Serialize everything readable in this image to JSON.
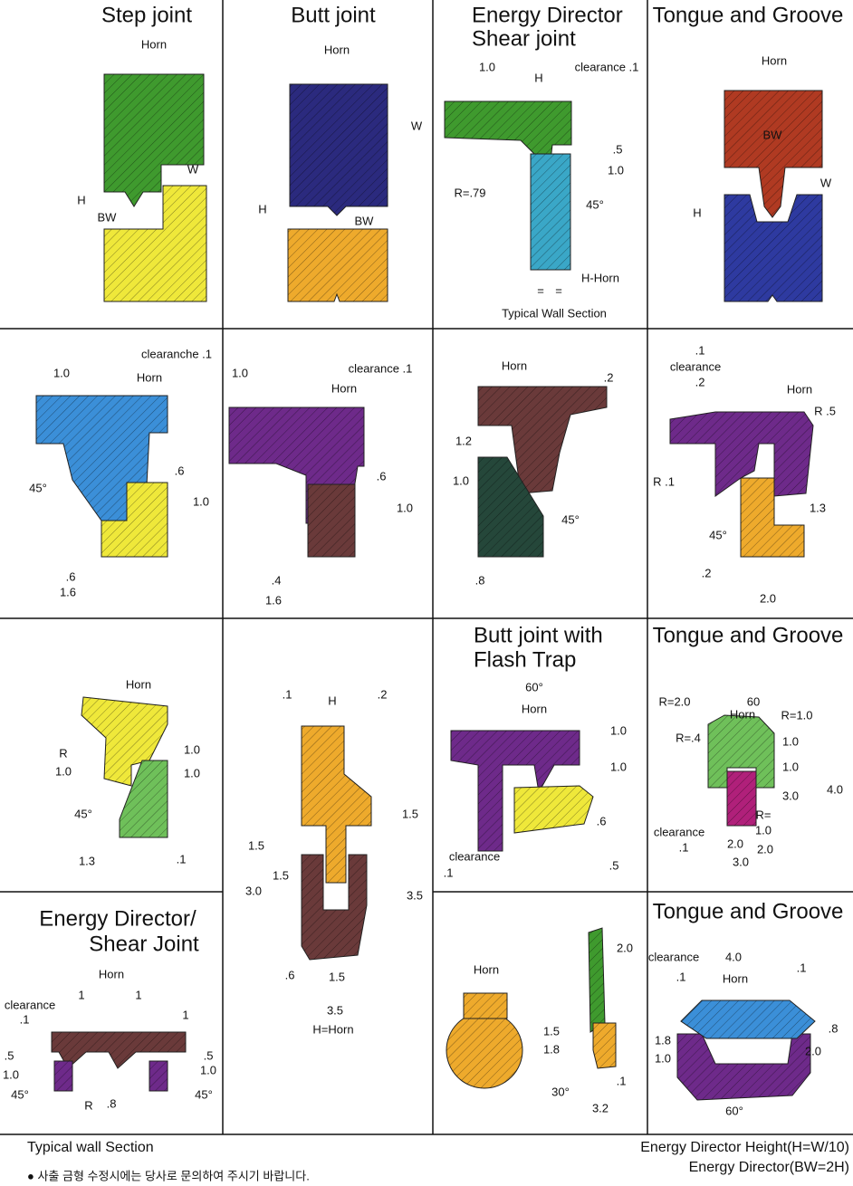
{
  "cells": [
    {
      "title": "Step joint",
      "labels": [
        "Horn",
        "W",
        "H",
        "BW"
      ]
    },
    {
      "title": "Butt joint",
      "labels": [
        "Horn",
        "W",
        "H",
        "BW"
      ]
    },
    {
      "title": [
        "Energy Director",
        "Shear joint"
      ],
      "labels": [
        "1.0",
        "H",
        "clearance .1",
        ".5",
        "1.0",
        "R=.79",
        "45°",
        "H-Horn",
        "=",
        "=",
        "Typical Wall Section"
      ]
    },
    {
      "title": "Tongue and Groove",
      "labels": [
        "Horn",
        "BW",
        "W",
        "H"
      ]
    },
    {
      "labels": [
        "1.0",
        "clearanche .1",
        "Horn",
        "45°",
        ".6",
        "1.0",
        ".6",
        "1.6"
      ]
    },
    {
      "labels": [
        "1.0",
        "clearance .1",
        "Horn",
        ".6",
        "1.0",
        ".4",
        "1.6"
      ]
    },
    {
      "labels": [
        "Horn",
        ".2",
        "1.2",
        "1.0",
        "45°",
        ".8"
      ]
    },
    {
      "labels": [
        ".1",
        "clearance",
        ".2",
        "Horn",
        "R .5",
        "R .1",
        "1.3",
        "45°",
        ".2",
        "2.0"
      ]
    },
    {
      "labels": [
        "Horn",
        "R",
        "1.0",
        "1.0",
        "1.0",
        "45°",
        "1.3",
        ".1"
      ]
    },
    {
      "labels": [
        ".1",
        "H",
        ".2",
        "1.5",
        "1.5",
        "1.5",
        "3.0",
        "3.5",
        ".6",
        "1.5",
        "3.5",
        "H=Horn"
      ]
    },
    {
      "title": [
        "Butt joint with",
        "Flash Trap"
      ],
      "labels": [
        "60°",
        "Horn",
        "1.0",
        "1.0",
        ".6",
        "clearance",
        ".1",
        ".5"
      ]
    },
    {
      "title": "Tongue and Groove",
      "labels": [
        "R=2.0",
        "60",
        "Horn",
        "R=1.0",
        "R=.4",
        "1.0",
        "1.0",
        "3.0",
        "4.0",
        "R=",
        "1.0",
        "clearance",
        ".1",
        "2.0",
        "2.0",
        "3.0"
      ]
    },
    {
      "title": [
        "Energy Director/",
        "Shear Joint"
      ],
      "labels": [
        "Horn",
        "clearance",
        ".1",
        "1",
        "1",
        "1",
        ".5",
        ".5",
        "1.0",
        "1.0",
        "45°",
        "45°",
        ".8",
        "R"
      ]
    },
    {
      "labels": [
        "Horn",
        "2.0",
        "1.5",
        "1.8",
        "30°",
        ".1",
        "3.2"
      ]
    },
    {
      "title": "Tongue and Groove",
      "labels": [
        "clearance",
        "4.0",
        ".1",
        "Horn",
        ".1",
        ".8",
        "1.8",
        "2.0",
        "1.0",
        "60°"
      ]
    }
  ],
  "footer": {
    "left": "Typical wall Section",
    "right1": "Energy Director Height(H=W/10)",
    "right2": "Energy Director(BW=2H)",
    "note": "● 사출 금형 수정시에는 당사로 문의하여 주시기 바랍니다."
  }
}
